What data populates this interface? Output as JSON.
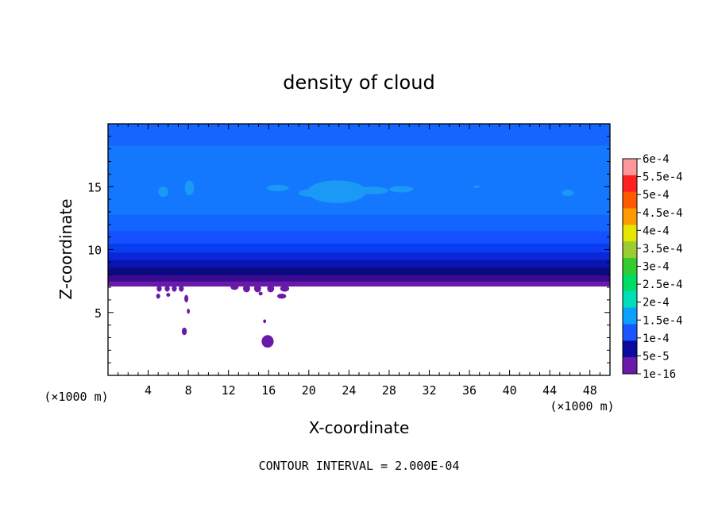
{
  "chart_data": {
    "type": "heatmap",
    "title": "density of cloud",
    "xlabel": "X-coordinate",
    "ylabel": "Z-coordinate",
    "x_unit": "(×1000 m)",
    "z_unit": "(×1000 m)",
    "xlim": [
      0,
      50
    ],
    "ylim": [
      0,
      20
    ],
    "x_ticks": [
      4,
      8,
      12,
      16,
      20,
      24,
      28,
      32,
      36,
      40,
      44,
      48
    ],
    "y_ticks": [
      5,
      10,
      15
    ],
    "footer": "CONTOUR INTERVAL = 2.000E-04",
    "colorbar": {
      "labels": [
        "6e-4",
        "5.5e-4",
        "5e-4",
        "4.5e-4",
        "4e-4",
        "3.5e-4",
        "3e-4",
        "2.5e-4",
        "2e-4",
        "1.5e-4",
        "1e-4",
        "5e-5",
        "1e-16"
      ],
      "colors": [
        "#ff9999",
        "#ff2020",
        "#ff5a00",
        "#ff9a00",
        "#e6e600",
        "#9acd32",
        "#33cc33",
        "#00dd66",
        "#00ddbb",
        "#0aa0ff",
        "#1a55ff",
        "#0a0aa0",
        "#6a1aa8"
      ]
    },
    "bands": [
      {
        "z0": 7.1,
        "z1": 7.5,
        "color": "#6a1aa8"
      },
      {
        "z0": 7.5,
        "z1": 8.0,
        "color": "#3a0a90"
      },
      {
        "z0": 8.0,
        "z1": 8.6,
        "color": "#0a0a80"
      },
      {
        "z0": 8.6,
        "z1": 9.2,
        "color": "#0a14b0"
      },
      {
        "z0": 9.2,
        "z1": 9.8,
        "color": "#0a28d8"
      },
      {
        "z0": 9.8,
        "z1": 10.5,
        "color": "#0a3cf0"
      },
      {
        "z0": 10.5,
        "z1": 11.5,
        "color": "#1450ff"
      },
      {
        "z0": 11.5,
        "z1": 12.8,
        "color": "#1464ff"
      },
      {
        "z0": 12.8,
        "z1": 18.3,
        "color": "#1478ff"
      },
      {
        "z0": 18.3,
        "z1": 20.0,
        "color": "#1466ff"
      }
    ],
    "blobs": [
      {
        "x": 22.8,
        "z": 14.6,
        "rx": 2.9,
        "rz": 0.9,
        "color": "#1a9af5"
      },
      {
        "x": 20.3,
        "z": 14.5,
        "rx": 1.3,
        "rz": 0.3,
        "color": "#1a9af5"
      },
      {
        "x": 16.9,
        "z": 14.9,
        "rx": 1.1,
        "rz": 0.25,
        "color": "#1a9af5"
      },
      {
        "x": 26.3,
        "z": 14.7,
        "rx": 1.6,
        "rz": 0.3,
        "color": "#1a9af5"
      },
      {
        "x": 29.2,
        "z": 14.8,
        "rx": 1.2,
        "rz": 0.25,
        "color": "#1a9af5"
      },
      {
        "x": 8.1,
        "z": 14.9,
        "rx": 0.45,
        "rz": 0.6,
        "color": "#1a9af5"
      },
      {
        "x": 5.5,
        "z": 14.6,
        "rx": 0.5,
        "rz": 0.4,
        "color": "#1a9af5"
      },
      {
        "x": 45.8,
        "z": 14.5,
        "rx": 0.6,
        "rz": 0.25,
        "color": "#1a9af5"
      },
      {
        "x": 36.7,
        "z": 15.0,
        "rx": 0.3,
        "rz": 0.1,
        "color": "#1a9af5"
      },
      {
        "x": 15.9,
        "z": 2.7,
        "rx": 0.6,
        "rz": 0.5,
        "color": "#6a1aa8"
      },
      {
        "x": 7.6,
        "z": 3.5,
        "rx": 0.25,
        "rz": 0.3,
        "color": "#6a1aa8"
      },
      {
        "x": 5.0,
        "z": 6.3,
        "rx": 0.2,
        "rz": 0.2,
        "color": "#6a1aa8"
      },
      {
        "x": 6.0,
        "z": 6.4,
        "rx": 0.2,
        "rz": 0.15,
        "color": "#6a1aa8"
      },
      {
        "x": 7.8,
        "z": 6.1,
        "rx": 0.2,
        "rz": 0.3,
        "color": "#6a1aa8"
      },
      {
        "x": 8.0,
        "z": 5.1,
        "rx": 0.15,
        "rz": 0.2,
        "color": "#6a1aa8"
      },
      {
        "x": 17.3,
        "z": 6.3,
        "rx": 0.45,
        "rz": 0.2,
        "color": "#6a1aa8"
      },
      {
        "x": 15.6,
        "z": 4.3,
        "rx": 0.15,
        "rz": 0.15,
        "color": "#6a1aa8"
      },
      {
        "x": 15.2,
        "z": 6.5,
        "rx": 0.2,
        "rz": 0.15,
        "color": "#6a1aa8"
      }
    ],
    "fringe": [
      {
        "x": 5.1,
        "z": 6.9,
        "rx": 0.25,
        "rz": 0.25
      },
      {
        "x": 5.9,
        "z": 6.9,
        "rx": 0.25,
        "rz": 0.25
      },
      {
        "x": 6.6,
        "z": 6.9,
        "rx": 0.25,
        "rz": 0.25
      },
      {
        "x": 7.3,
        "z": 6.9,
        "rx": 0.25,
        "rz": 0.25
      },
      {
        "x": 12.6,
        "z": 7.0,
        "rx": 0.4,
        "rz": 0.2
      },
      {
        "x": 13.8,
        "z": 6.9,
        "rx": 0.35,
        "rz": 0.3
      },
      {
        "x": 14.9,
        "z": 6.9,
        "rx": 0.35,
        "rz": 0.3
      },
      {
        "x": 16.2,
        "z": 6.9,
        "rx": 0.35,
        "rz": 0.3
      },
      {
        "x": 17.6,
        "z": 6.9,
        "rx": 0.45,
        "rz": 0.25
      }
    ]
  }
}
